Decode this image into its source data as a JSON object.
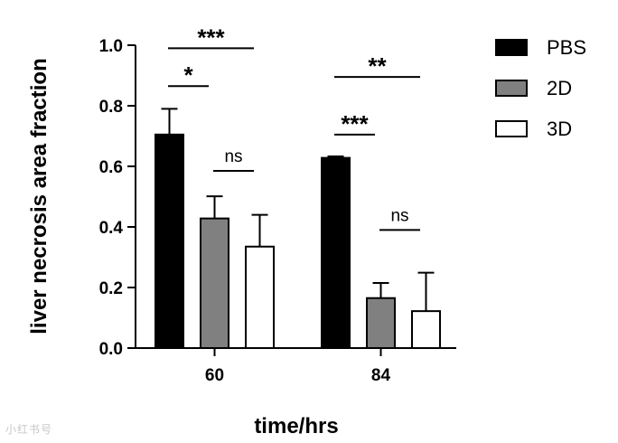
{
  "chart_data": {
    "type": "bar",
    "categories": [
      "60",
      "84"
    ],
    "series": [
      {
        "name": "PBS",
        "color": "#000000",
        "values": [
          0.705,
          0.628
        ],
        "errors": [
          0.085,
          0.005
        ]
      },
      {
        "name": "2D",
        "color": "#808080",
        "values": [
          0.428,
          0.165
        ],
        "errors": [
          0.073,
          0.05
        ]
      },
      {
        "name": "3D",
        "color": "#ffffff",
        "values": [
          0.335,
          0.122
        ],
        "errors": [
          0.105,
          0.127
        ]
      }
    ],
    "xlabel": "time/hrs",
    "ylabel": "liver necrosis area fraction",
    "ylim": [
      0,
      1.0
    ],
    "yticks": [
      "0.0",
      "0.2",
      "0.4",
      "0.6",
      "0.8",
      "1.0"
    ],
    "legend_position": "top-right",
    "grid": false,
    "significance": [
      {
        "category": 0,
        "from": 0,
        "to": 2,
        "label": "***",
        "level": 0.99
      },
      {
        "category": 0,
        "from": 0,
        "to": 1,
        "label": "*",
        "level": 0.865
      },
      {
        "category": 0,
        "from": 1,
        "to": 2,
        "label": "ns",
        "level": 0.585
      },
      {
        "category": 1,
        "from": 0,
        "to": 2,
        "label": "**",
        "level": 0.895
      },
      {
        "category": 1,
        "from": 0,
        "to": 1,
        "label": "***",
        "level": 0.705
      },
      {
        "category": 1,
        "from": 1,
        "to": 2,
        "label": "ns",
        "level": 0.39
      }
    ]
  },
  "watermark": "小红书号"
}
